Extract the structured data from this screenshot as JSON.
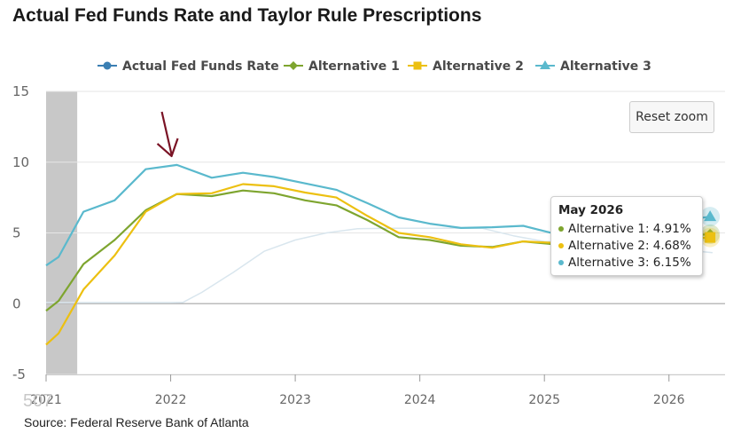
{
  "title": "Actual Fed Funds Rate and Taylor Rule Prescriptions",
  "reset_zoom_label": "Reset zoom",
  "source": "Source: Federal Reserve Bank of Atlanta",
  "ghost_text": "507",
  "colors": {
    "actual": "#3b7fb3",
    "alt1": "#7ea52f",
    "alt2": "#ecc011",
    "alt3": "#5ab9cd",
    "shade": "#c8c8c8",
    "arrow": "#7a1325",
    "grid": "#e6e6e6",
    "zero_line": "#bbbbbb"
  },
  "tooltip": {
    "title": "May 2026",
    "rows": [
      {
        "label": "Alternative 1: 4.91%",
        "color": "#7ea52f"
      },
      {
        "label": "Alternative 2: 4.68%",
        "color": "#ecc011"
      },
      {
        "label": "Alternative 3: 6.15%",
        "color": "#5ab9cd"
      }
    ]
  },
  "chart_data": {
    "type": "line",
    "title": "Actual Fed Funds Rate and Taylor Rule Prescriptions",
    "xlabel": "",
    "ylabel": "",
    "ylim": [
      -5,
      15
    ],
    "yticks": [
      -5,
      0,
      5,
      10,
      15
    ],
    "xlim": [
      2021.0,
      2026.45
    ],
    "xticks": [
      {
        "value": 2021,
        "label": "2021"
      },
      {
        "value": 2022,
        "label": "2022"
      },
      {
        "value": 2023,
        "label": "2023"
      },
      {
        "value": 2024,
        "label": "2024"
      },
      {
        "value": 2025,
        "label": "2025"
      },
      {
        "value": 2026,
        "label": "2026"
      }
    ],
    "grid": true,
    "legend_position": "top-center",
    "shaded_region": [
      2021.0,
      2021.25
    ],
    "annotation": {
      "type": "arrow",
      "x": 2022.0,
      "y": 10.3
    },
    "series": [
      {
        "name": "Actual Fed Funds Rate",
        "key": "actual",
        "marker": "circle",
        "hidden": true,
        "x": [
          2021.0,
          2021.1,
          2021.25,
          2021.5,
          2021.75,
          2022.0,
          2022.1,
          2022.25,
          2022.5,
          2022.75,
          2023.0,
          2023.25,
          2023.5,
          2023.75,
          2024.0,
          2024.25,
          2024.5,
          2024.75,
          2025.0,
          2025.25,
          2025.5,
          2025.75,
          2026.0,
          2026.35
        ],
        "y": [
          0.08,
          0.08,
          0.08,
          0.08,
          0.08,
          0.08,
          0.1,
          0.8,
          2.2,
          3.7,
          4.5,
          5.0,
          5.3,
          5.33,
          5.33,
          5.33,
          5.33,
          4.8,
          4.4,
          4.35,
          4.35,
          4.1,
          3.9,
          3.6
        ]
      },
      {
        "name": "Alternative 1",
        "key": "alt1",
        "marker": "diamond",
        "x": [
          2021.0,
          2021.1,
          2021.3,
          2021.55,
          2021.8,
          2022.05,
          2022.33,
          2022.58,
          2022.83,
          2023.08,
          2023.33,
          2023.58,
          2023.83,
          2024.08,
          2024.33,
          2024.58,
          2024.83,
          2025.08,
          2025.33,
          2025.58,
          2025.83,
          2026.08,
          2026.33
        ],
        "y": [
          -0.5,
          0.2,
          2.8,
          4.5,
          6.6,
          7.75,
          7.6,
          8.0,
          7.8,
          7.3,
          6.95,
          5.9,
          4.7,
          4.5,
          4.1,
          4.0,
          4.4,
          4.2,
          4.4,
          4.6,
          4.6,
          4.75,
          4.91
        ]
      },
      {
        "name": "Alternative 2",
        "key": "alt2",
        "marker": "square",
        "x": [
          2021.0,
          2021.1,
          2021.3,
          2021.55,
          2021.8,
          2022.05,
          2022.33,
          2022.58,
          2022.83,
          2023.08,
          2023.33,
          2023.58,
          2023.83,
          2024.08,
          2024.33,
          2024.58,
          2024.83,
          2025.08,
          2025.33,
          2025.58,
          2025.83,
          2026.08,
          2026.33
        ],
        "y": [
          -2.9,
          -2.1,
          1.0,
          3.4,
          6.5,
          7.75,
          7.8,
          8.45,
          8.3,
          7.85,
          7.5,
          6.2,
          5.0,
          4.7,
          4.2,
          3.95,
          4.4,
          4.3,
          4.3,
          4.4,
          4.4,
          4.55,
          4.68
        ]
      },
      {
        "name": "Alternative 3",
        "key": "alt3",
        "marker": "triangle",
        "x": [
          2021.0,
          2021.1,
          2021.3,
          2021.55,
          2021.8,
          2022.05,
          2022.33,
          2022.58,
          2022.83,
          2023.08,
          2023.33,
          2023.58,
          2023.83,
          2024.08,
          2024.33,
          2024.58,
          2024.83,
          2025.08,
          2025.33,
          2025.58,
          2025.83,
          2026.08,
          2026.33
        ],
        "y": [
          2.7,
          3.3,
          6.5,
          7.3,
          9.5,
          9.8,
          8.9,
          9.25,
          8.95,
          8.5,
          8.05,
          7.1,
          6.1,
          5.65,
          5.35,
          5.4,
          5.5,
          4.95,
          5.3,
          5.5,
          5.5,
          5.85,
          6.15
        ]
      }
    ]
  }
}
